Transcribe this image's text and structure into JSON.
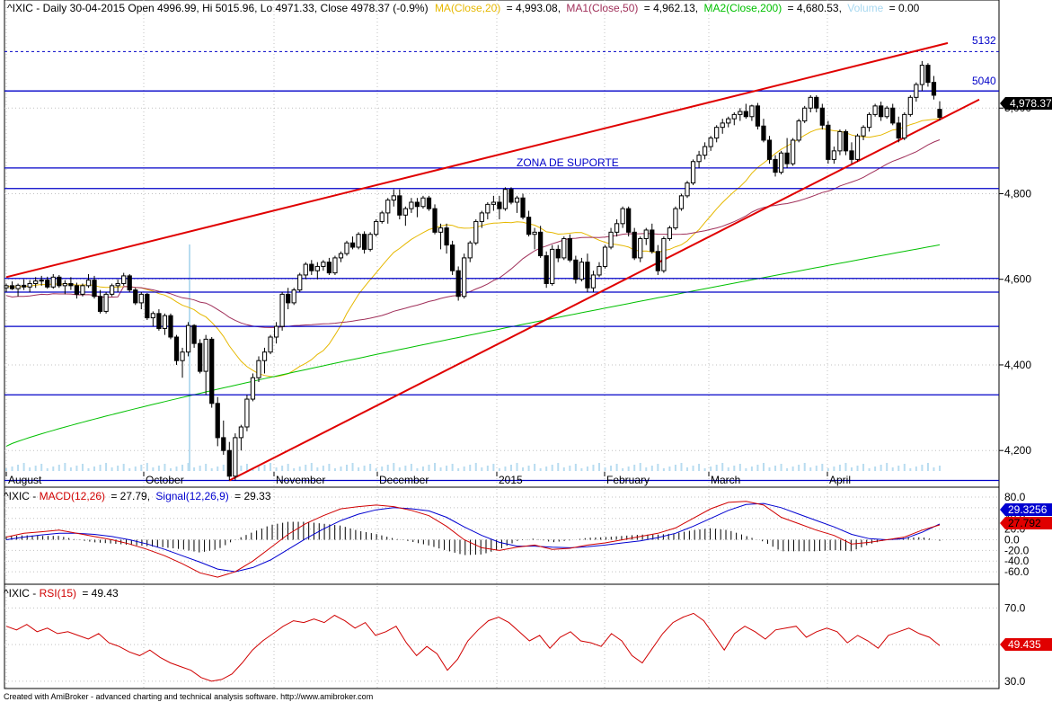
{
  "colors": {
    "frame": "#000000",
    "grid": "#c0c0c0",
    "hline": "#0000c8",
    "trend": "#e00000",
    "ma20": "#e6b800",
    "ma50": "#a0305a",
    "ma200": "#00c000",
    "volume": "#b8dcf0",
    "macd": "#d00000",
    "signal": "#0000d0",
    "rsi": "#d00000"
  },
  "main_header": {
    "prefix": "^IXIC - Daily 30-04-2015 Open 4996.99, Hi 5015.96, Lo 4971.33, Close 4978.37 (-0.9%)",
    "ma20_label": "MA(Close,20)",
    "ma20_value": "= 4,993.08,",
    "ma50_label": "MA1(Close,50)",
    "ma50_value": "= 4,962.13,",
    "ma200_label": "MA2(Close,200)",
    "ma200_value": "= 4,680.53,",
    "volume_label": "Volume",
    "volume_value": "= 0.00"
  },
  "macd_header": {
    "prefix": "^IXIC - ",
    "macd_label": "MACD(12,26)",
    "macd_value": "= 27.79,",
    "signal_label": "Signal(12,26,9)",
    "signal_value": "= 29.33"
  },
  "rsi_header": {
    "prefix": "^IXIC - ",
    "rsi_label": "RSI(15)",
    "rsi_value": "= 49.43"
  },
  "annotations": {
    "zona": "ZONA DE SUPORTE",
    "level_5132": "5132",
    "level_5040": "5040"
  },
  "price_marker": "4,978.37",
  "macd_markers": {
    "signal": "29.3256",
    "macd": "27.792"
  },
  "rsi_marker": "49.435",
  "footer": "Created with AmiBroker - advanced charting and technical analysis software. http://www.amibroker.com",
  "chart_data": [
    {
      "type": "candlestick",
      "title": "^IXIC - Daily",
      "x_tick_labels": [
        "August",
        "October",
        "November",
        "December",
        "2015",
        "February",
        "March",
        "April"
      ],
      "y_tick_labels": [
        "5,000",
        "4,800",
        "4,600",
        "4,400",
        "4,200"
      ],
      "ylim": [
        4150,
        5200
      ],
      "horizontal_levels": [
        5132,
        5040,
        4860,
        4812,
        4602,
        4570,
        4490,
        4330,
        4130
      ],
      "last_close": 4978.37,
      "grid": true,
      "ohlc": [
        [
          4580,
          4590,
          4570,
          4585
        ],
        [
          4585,
          4595,
          4575,
          4578
        ],
        [
          4578,
          4590,
          4560,
          4586
        ],
        [
          4586,
          4600,
          4575,
          4582
        ],
        [
          4582,
          4598,
          4570,
          4590
        ],
        [
          4590,
          4605,
          4580,
          4596
        ],
        [
          4596,
          4608,
          4585,
          4598
        ],
        [
          4598,
          4606,
          4578,
          4582
        ],
        [
          4582,
          4612,
          4578,
          4605
        ],
        [
          4605,
          4610,
          4580,
          4585
        ],
        [
          4585,
          4598,
          4565,
          4590
        ],
        [
          4590,
          4605,
          4575,
          4585
        ],
        [
          4585,
          4592,
          4555,
          4565
        ],
        [
          4565,
          4590,
          4560,
          4585
        ],
        [
          4585,
          4612,
          4580,
          4598
        ],
        [
          4598,
          4608,
          4555,
          4560
        ],
        [
          4560,
          4575,
          4520,
          4525
        ],
        [
          4525,
          4570,
          4520,
          4565
        ],
        [
          4565,
          4590,
          4560,
          4585
        ],
        [
          4585,
          4600,
          4570,
          4590
        ],
        [
          4590,
          4615,
          4585,
          4608
        ],
        [
          4608,
          4612,
          4570,
          4575
        ],
        [
          4575,
          4580,
          4540,
          4545
        ],
        [
          4545,
          4570,
          4530,
          4565
        ],
        [
          4565,
          4568,
          4505,
          4510
        ],
        [
          4510,
          4525,
          4490,
          4520
        ],
        [
          4520,
          4530,
          4480,
          4485
        ],
        [
          4485,
          4520,
          4470,
          4515
        ],
        [
          4515,
          4520,
          4460,
          4465
        ],
        [
          4465,
          4470,
          4400,
          4410
        ],
        [
          4410,
          4440,
          4370,
          4430
        ],
        [
          4430,
          4500,
          4420,
          4492
        ],
        [
          4492,
          4495,
          4440,
          4450
        ],
        [
          4450,
          4460,
          4380,
          4385
        ],
        [
          4385,
          4470,
          4330,
          4460
        ],
        [
          4460,
          4465,
          4300,
          4310
        ],
        [
          4310,
          4325,
          4210,
          4230
        ],
        [
          4230,
          4270,
          4190,
          4200
        ],
        [
          4200,
          4220,
          4130,
          4140
        ],
        [
          4140,
          4240,
          4130,
          4230
        ],
        [
          4230,
          4260,
          4200,
          4255
        ],
        [
          4255,
          4330,
          4245,
          4320
        ],
        [
          4320,
          4380,
          4315,
          4370
        ],
        [
          4370,
          4420,
          4360,
          4410
        ],
        [
          4410,
          4440,
          4380,
          4430
        ],
        [
          4430,
          4470,
          4425,
          4465
        ],
        [
          4465,
          4500,
          4450,
          4490
        ],
        [
          4490,
          4570,
          4480,
          4565
        ],
        [
          4565,
          4580,
          4530,
          4545
        ],
        [
          4545,
          4580,
          4540,
          4575
        ],
        [
          4575,
          4615,
          4570,
          4610
        ],
        [
          4610,
          4640,
          4600,
          4635
        ],
        [
          4635,
          4645,
          4610,
          4620
        ],
        [
          4620,
          4640,
          4600,
          4630
        ],
        [
          4630,
          4645,
          4620,
          4640
        ],
        [
          4640,
          4650,
          4610,
          4615
        ],
        [
          4615,
          4655,
          4610,
          4650
        ],
        [
          4650,
          4665,
          4640,
          4660
        ],
        [
          4660,
          4690,
          4655,
          4685
        ],
        [
          4685,
          4700,
          4670,
          4675
        ],
        [
          4675,
          4710,
          4670,
          4705
        ],
        [
          4705,
          4712,
          4660,
          4670
        ],
        [
          4670,
          4710,
          4665,
          4705
        ],
        [
          4705,
          4740,
          4700,
          4735
        ],
        [
          4735,
          4760,
          4730,
          4755
        ],
        [
          4755,
          4790,
          4730,
          4785
        ],
        [
          4785,
          4810,
          4770,
          4795
        ],
        [
          4795,
          4810,
          4740,
          4750
        ],
        [
          4750,
          4770,
          4725,
          4765
        ],
        [
          4765,
          4790,
          4755,
          4780
        ],
        [
          4780,
          4790,
          4745,
          4770
        ],
        [
          4770,
          4795,
          4765,
          4790
        ],
        [
          4790,
          4795,
          4760,
          4765
        ],
        [
          4765,
          4775,
          4705,
          4710
        ],
        [
          4710,
          4730,
          4670,
          4720
        ],
        [
          4720,
          4730,
          4660,
          4680
        ],
        [
          4680,
          4690,
          4610,
          4620
        ],
        [
          4620,
          4630,
          4550,
          4560
        ],
        [
          4560,
          4660,
          4555,
          4650
        ],
        [
          4650,
          4690,
          4640,
          4685
        ],
        [
          4685,
          4740,
          4680,
          4735
        ],
        [
          4735,
          4760,
          4720,
          4755
        ],
        [
          4755,
          4780,
          4740,
          4775
        ],
        [
          4775,
          4795,
          4760,
          4780
        ],
        [
          4780,
          4795,
          4740,
          4765
        ],
        [
          4765,
          4815,
          4760,
          4810
        ],
        [
          4810,
          4815,
          4775,
          4780
        ],
        [
          4780,
          4795,
          4755,
          4790
        ],
        [
          4790,
          4800,
          4740,
          4745
        ],
        [
          4745,
          4760,
          4700,
          4705
        ],
        [
          4705,
          4720,
          4670,
          4710
        ],
        [
          4710,
          4725,
          4650,
          4655
        ],
        [
          4655,
          4665,
          4580,
          4590
        ],
        [
          4590,
          4680,
          4585,
          4670
        ],
        [
          4670,
          4680,
          4640,
          4650
        ],
        [
          4650,
          4700,
          4645,
          4695
        ],
        [
          4695,
          4705,
          4640,
          4645
        ],
        [
          4645,
          4655,
          4590,
          4600
        ],
        [
          4600,
          4650,
          4595,
          4640
        ],
        [
          4640,
          4660,
          4570,
          4580
        ],
        [
          4580,
          4620,
          4570,
          4610
        ],
        [
          4610,
          4640,
          4605,
          4630
        ],
        [
          4630,
          4680,
          4625,
          4675
        ],
        [
          4675,
          4720,
          4670,
          4710
        ],
        [
          4710,
          4740,
          4700,
          4730
        ],
        [
          4730,
          4770,
          4720,
          4765
        ],
        [
          4765,
          4770,
          4700,
          4710
        ],
        [
          4710,
          4720,
          4645,
          4650
        ],
        [
          4650,
          4700,
          4640,
          4695
        ],
        [
          4695,
          4720,
          4680,
          4715
        ],
        [
          4715,
          4730,
          4660,
          4665
        ],
        [
          4665,
          4680,
          4610,
          4620
        ],
        [
          4620,
          4700,
          4615,
          4695
        ],
        [
          4695,
          4725,
          4690,
          4720
        ],
        [
          4720,
          4770,
          4715,
          4765
        ],
        [
          4765,
          4800,
          4760,
          4795
        ],
        [
          4795,
          4830,
          4790,
          4825
        ],
        [
          4825,
          4880,
          4820,
          4875
        ],
        [
          4875,
          4900,
          4860,
          4890
        ],
        [
          4890,
          4920,
          4880,
          4910
        ],
        [
          4910,
          4935,
          4900,
          4930
        ],
        [
          4930,
          4960,
          4920,
          4955
        ],
        [
          4955,
          4975,
          4940,
          4965
        ],
        [
          4965,
          4980,
          4955,
          4975
        ],
        [
          4975,
          4990,
          4960,
          4985
        ],
        [
          4985,
          5000,
          4970,
          4992
        ],
        [
          4992,
          5010,
          4975,
          4980
        ],
        [
          4980,
          5008,
          4970,
          5005
        ],
        [
          5005,
          5012,
          4950,
          4958
        ],
        [
          4958,
          4975,
          4920,
          4925
        ],
        [
          4925,
          4935,
          4870,
          4880
        ],
        [
          4880,
          4890,
          4840,
          4850
        ],
        [
          4850,
          4900,
          4845,
          4895
        ],
        [
          4895,
          4930,
          4860,
          4870
        ],
        [
          4870,
          4930,
          4865,
          4925
        ],
        [
          4925,
          4975,
          4920,
          4970
        ],
        [
          4970,
          5005,
          4965,
          5000
        ],
        [
          5000,
          5030,
          4990,
          5025
        ],
        [
          5025,
          5030,
          4990,
          5000
        ],
        [
          5000,
          5010,
          4950,
          4960
        ],
        [
          4960,
          4970,
          4870,
          4880
        ],
        [
          4880,
          4910,
          4870,
          4900
        ],
        [
          4900,
          4950,
          4890,
          4945
        ],
        [
          4945,
          4950,
          4890,
          4900
        ],
        [
          4900,
          4920,
          4870,
          4880
        ],
        [
          4880,
          4940,
          4875,
          4935
        ],
        [
          4935,
          4960,
          4925,
          4955
        ],
        [
          4955,
          4990,
          4945,
          4985
        ],
        [
          4985,
          5010,
          4980,
          5005
        ],
        [
          5005,
          5015,
          4970,
          4980
        ],
        [
          4980,
          5005,
          4975,
          5000
        ],
        [
          5000,
          5010,
          4960,
          4965
        ],
        [
          4965,
          4980,
          4920,
          4930
        ],
        [
          4930,
          4990,
          4925,
          4985
        ],
        [
          4985,
          5030,
          4980,
          5025
        ],
        [
          5025,
          5060,
          5015,
          5055
        ],
        [
          5055,
          5110,
          5040,
          5100
        ],
        [
          5100,
          5105,
          5050,
          5060
        ],
        [
          5060,
          5075,
          5020,
          5030
        ],
        [
          4996.99,
          5015.96,
          4971.33,
          4978.37
        ]
      ],
      "ma_overlays": [
        {
          "name": "MA(Close,20)",
          "value": 4993.08
        },
        {
          "name": "MA1(Close,50)",
          "value": 4962.13
        },
        {
          "name": "MA2(Close,200)",
          "value": 4680.53
        }
      ]
    },
    {
      "type": "line",
      "title": "MACD(12,26)",
      "y_tick_labels": [
        "80.0",
        "60.0",
        "40.0",
        "20.0",
        "0.0",
        "-20.0",
        "-40.0",
        "-60.0"
      ],
      "ylim": [
        -80,
        90
      ],
      "series": [
        {
          "name": "MACD(12,26)",
          "values": [
            5,
            12,
            15,
            18,
            12,
            6,
            0,
            -8,
            -18,
            -30,
            -45,
            -62,
            -70,
            -60,
            -40,
            -15,
            10,
            30,
            45,
            58,
            62,
            65,
            62,
            55,
            45,
            25,
            0,
            -15,
            -20,
            -14,
            -10,
            -18,
            -16,
            -10,
            -6,
            0,
            6,
            12,
            22,
            40,
            58,
            70,
            72,
            65,
            42,
            30,
            18,
            8,
            -8,
            -5,
            0,
            5,
            18,
            27.79
          ]
        },
        {
          "name": "Signal(12,26,9)",
          "values": [
            0,
            5,
            9,
            12,
            12,
            10,
            6,
            0,
            -8,
            -18,
            -30,
            -42,
            -55,
            -60,
            -52,
            -38,
            -18,
            2,
            20,
            36,
            48,
            56,
            60,
            58,
            54,
            42,
            24,
            8,
            -5,
            -12,
            -12,
            -14,
            -15,
            -13,
            -10,
            -6,
            -2,
            4,
            12,
            25,
            40,
            55,
            66,
            68,
            60,
            48,
            36,
            24,
            10,
            2,
            0,
            2,
            14,
            29.33
          ]
        }
      ]
    },
    {
      "type": "line",
      "title": "RSI(15)",
      "y_tick_labels": [
        "70.0",
        "50.0",
        "30.0"
      ],
      "ylim": [
        28,
        78
      ],
      "series": [
        {
          "name": "RSI(15)",
          "values": [
            60,
            58,
            61,
            57,
            59,
            56,
            57,
            55,
            53,
            56,
            51,
            49,
            46,
            44,
            47,
            43,
            40,
            38,
            36,
            32,
            30,
            31,
            34,
            40,
            47,
            52,
            56,
            60,
            63,
            62,
            64,
            62,
            66,
            63,
            59,
            62,
            55,
            57,
            60,
            51,
            44,
            49,
            45,
            36,
            42,
            52,
            58,
            63,
            65,
            62,
            57,
            52,
            55,
            48,
            54,
            57,
            52,
            51,
            49,
            56,
            52,
            44,
            40,
            48,
            56,
            62,
            65,
            67,
            63,
            55,
            47,
            56,
            60,
            57,
            53,
            58,
            59,
            60,
            54,
            57,
            59,
            57,
            51,
            55,
            52,
            48,
            55,
            57,
            59,
            56,
            54,
            49.43
          ]
        }
      ]
    }
  ]
}
